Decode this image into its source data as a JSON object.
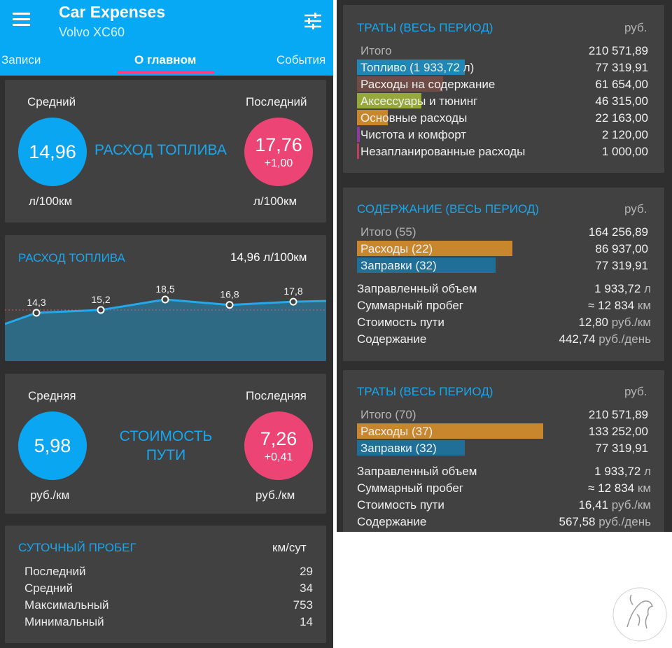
{
  "app": {
    "title": "Car Expenses",
    "subtitle": "Volvo XC60"
  },
  "tabs": [
    {
      "label": "Записи"
    },
    {
      "label": "О главном"
    },
    {
      "label": "События"
    }
  ],
  "fuel_card": {
    "avg_label": "Средний",
    "last_label": "Последний",
    "avg_value": "14,96",
    "last_value": "17,76",
    "last_delta": "+1,00",
    "title": "РАСХОД ТОПЛИВА",
    "unit_left": "л/100км",
    "unit_right": "л/100км"
  },
  "fuel_chart": {
    "title": "РАСХОД ТОПЛИВА",
    "value": "14,96",
    "unit": "л/100км",
    "colors": {
      "line": "#24a8ec",
      "fill": "#2f6a84",
      "ref": "#e05566"
    }
  },
  "chart_data": {
    "type": "area",
    "title": "РАСХОД ТОПЛИВА",
    "x": [
      1,
      2,
      3,
      4,
      5
    ],
    "values": [
      14.3,
      15.2,
      18.5,
      16.8,
      17.8
    ],
    "labels": [
      "14,3",
      "15,2",
      "18,5",
      "16,8",
      "17,8"
    ],
    "reference": 14.96,
    "ylim": [
      0,
      20
    ]
  },
  "cost_card": {
    "avg_label": "Средняя",
    "last_label": "Последняя",
    "avg_value": "5,98",
    "last_value": "7,26",
    "last_delta": "+0,41",
    "title_line1": "СТОИМОСТЬ",
    "title_line2": "ПУТИ",
    "unit_left": "руб./км",
    "unit_right": "руб./км"
  },
  "mileage_card": {
    "title": "СУТОЧНЫЙ ПРОБЕГ",
    "unit": "км/сут",
    "rows": [
      {
        "label": "Последний",
        "value": "29"
      },
      {
        "label": "Средний",
        "value": "34"
      },
      {
        "label": "Максимальный",
        "value": "753"
      },
      {
        "label": "Минимальный",
        "value": "14"
      }
    ]
  },
  "spend_card": {
    "title": "ТРАТЫ (ВЕСЬ ПЕРИОД)",
    "unit": "руб.",
    "total_label": "Итого",
    "total_value": "210 571,89",
    "rows": [
      {
        "label": "Топливо (1 933,72 л)",
        "value": "77 319,91",
        "color": "#1f86b6",
        "share": 0.367
      },
      {
        "label": "Расходы на содержание",
        "value": "61 654,00",
        "color": "#6f4d46",
        "share": 0.293
      },
      {
        "label": "Аксессуары и тюнинг",
        "value": "46 315,00",
        "color": "#97a83a",
        "share": 0.22
      },
      {
        "label": "Основные расходы",
        "value": "22 163,00",
        "color": "#c8862d",
        "share": 0.105
      },
      {
        "label": "Чистота и комфорт",
        "value": "2 120,00",
        "color": "#8a3d9d",
        "share": 0.01
      },
      {
        "label": "Незапланированные расходы",
        "value": "1 000,00",
        "color": "#c03d5e",
        "share": 0.005
      }
    ]
  },
  "maint_card": {
    "title": "СОДЕРЖАНИЕ (ВЕСЬ ПЕРИОД)",
    "unit": "руб.",
    "total_label": "Итого (55)",
    "total_value": "164 256,89",
    "rows": [
      {
        "label": "Расходы (22)",
        "value": "86 937,00",
        "color": "#c8862d",
        "share": 0.529
      },
      {
        "label": "Заправки (32)",
        "value": "77 319,91",
        "color": "#1f6f99",
        "share": 0.471
      }
    ],
    "stats": [
      {
        "label": "Заправленный объем",
        "value": "1 933,72",
        "unit": "л"
      },
      {
        "label": "Суммарный пробег",
        "value": "≈ 12 834",
        "unit": "км"
      },
      {
        "label": "Стоимость пути",
        "value": "12,80",
        "unit": "руб./км"
      },
      {
        "label": "Содержание",
        "value": "442,74",
        "unit": "руб./день"
      }
    ]
  },
  "spend2_card": {
    "title": "ТРАТЫ (ВЕСЬ ПЕРИОД)",
    "unit": "руб.",
    "total_label": "Итого (70)",
    "total_value": "210 571,89",
    "rows": [
      {
        "label": "Расходы (37)",
        "value": "133 252,00",
        "color": "#c8862d",
        "share": 0.633
      },
      {
        "label": "Заправки (32)",
        "value": "77 319,91",
        "color": "#1f6f99",
        "share": 0.367
      }
    ],
    "stats": [
      {
        "label": "Заправленный объем",
        "value": "1 933,72",
        "unit": "л"
      },
      {
        "label": "Суммарный пробег",
        "value": "≈ 12 834",
        "unit": "км"
      },
      {
        "label": "Стоимость пути",
        "value": "16,41",
        "unit": "руб./км"
      },
      {
        "label": "Содержание",
        "value": "567,58",
        "unit": "руб./день"
      }
    ]
  }
}
